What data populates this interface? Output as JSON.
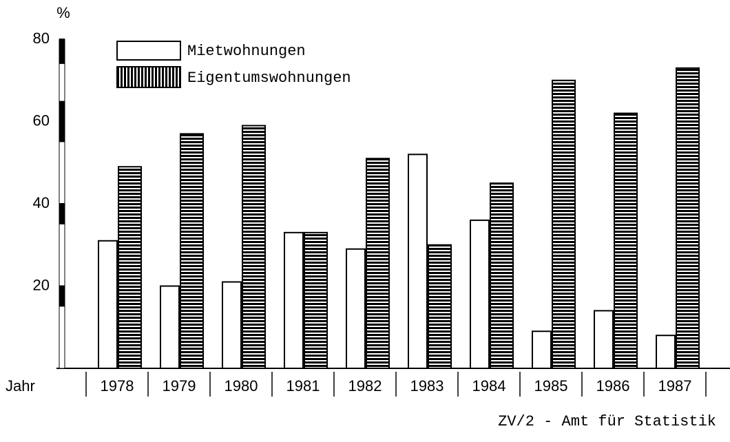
{
  "chart_data": {
    "type": "bar",
    "y_label": "%",
    "x_label": "Jahr",
    "source": "ZV/2 - Amt für Statistik",
    "categories": [
      "1978",
      "1979",
      "1980",
      "1981",
      "1982",
      "1983",
      "1984",
      "1985",
      "1986",
      "1987"
    ],
    "series": [
      {
        "name": "Mietwohnungen",
        "color": "#ffffff",
        "values": [
          31,
          20,
          21,
          33,
          29,
          52,
          36,
          9,
          14,
          8
        ]
      },
      {
        "name": "Eigentumswohnungen",
        "color": "#000000",
        "values": [
          49,
          57,
          59,
          33,
          51,
          30,
          45,
          70,
          62,
          73
        ]
      }
    ],
    "ylim": [
      0,
      80
    ],
    "yticks": [
      20,
      40,
      60,
      80
    ]
  }
}
